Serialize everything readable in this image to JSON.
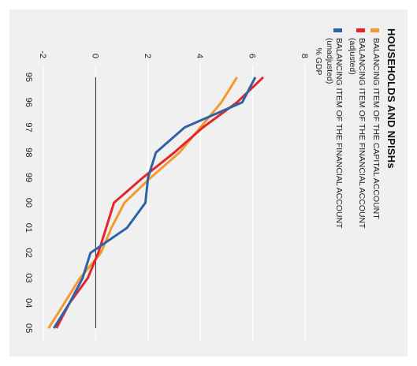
{
  "title": "HOUSEHOLDS AND NPISHs",
  "legend": [
    {
      "label": "BALANCING ITEM OF THE CAPITAL ACCOUNT",
      "sub": "",
      "color": "#f39a2e"
    },
    {
      "label": "BALANCING ITEM OF THE FINANCIAL ACCOUNT",
      "sub": "(adjusted)",
      "color": "#e3262c"
    },
    {
      "label": "BALANCING ITEM OF THE FINANCIAL ACCOUNT",
      "sub": "(unadjusted)",
      "color": "#2e62a5"
    }
  ],
  "chart_data": {
    "type": "line",
    "title": "HOUSEHOLDS AND NPISHs",
    "ylabel": "% GDP",
    "xlabel": "",
    "categories": [
      "95",
      "96",
      "97",
      "98",
      "99",
      "00",
      "01",
      "02",
      "03",
      "04",
      "05"
    ],
    "yticks": [
      -2,
      0,
      2,
      4,
      6,
      8
    ],
    "ylim": [
      -2,
      8
    ],
    "grid": true,
    "orientation": "rotated-90",
    "series": [
      {
        "name": "BALANCING ITEM OF THE CAPITAL ACCOUNT",
        "color": "#f39a2e",
        "values": [
          5.4,
          4.8,
          4.0,
          3.2,
          2.1,
          1.1,
          0.6,
          0.2,
          -0.6,
          -1.2,
          -1.8
        ]
      },
      {
        "name": "BALANCING ITEM OF THE FINANCIAL ACCOUNT (adjusted)",
        "color": "#e3262c",
        "values": [
          6.4,
          5.4,
          4.1,
          3.0,
          1.8,
          0.7,
          0.4,
          0.1,
          -0.3,
          -1.0,
          -1.5
        ]
      },
      {
        "name": "BALANCING ITEM OF THE FINANCIAL ACCOUNT (unadjusted)",
        "color": "#2e62a5",
        "values": [
          6.1,
          5.6,
          3.4,
          2.3,
          2.0,
          1.9,
          1.2,
          -0.2,
          -0.5,
          -1.0,
          -1.6
        ]
      }
    ]
  }
}
